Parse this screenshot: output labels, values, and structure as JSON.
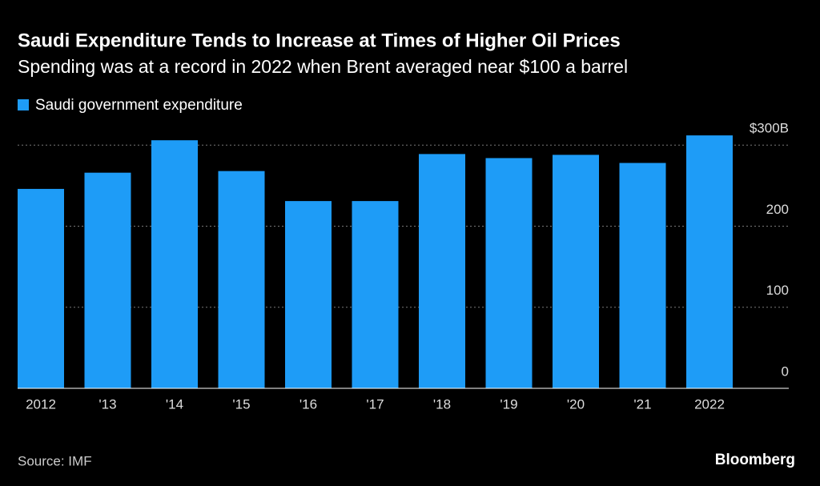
{
  "chart_data": {
    "type": "bar",
    "title": "Saudi Expenditure Tends to Increase at Times of Higher Oil Prices",
    "subtitle": "Spending was at a record in 2022 when Brent averaged near $100 a barrel",
    "categories": [
      "2012",
      "'13",
      "'14",
      "'15",
      "'16",
      "'17",
      "'18",
      "'19",
      "'20",
      "'21",
      "2022"
    ],
    "series": [
      {
        "name": "Saudi government expenditure",
        "color": "#1e9cf7",
        "values": [
          246,
          266,
          306,
          268,
          231,
          231,
          289,
          284,
          288,
          278,
          312
        ]
      }
    ],
    "ylim": [
      0,
      320
    ],
    "yticks": [
      0,
      100,
      200,
      {
        "value": 300,
        "label": "$300B"
      }
    ],
    "grid": true,
    "source": "Source: IMF",
    "brand": "Bloomberg"
  }
}
